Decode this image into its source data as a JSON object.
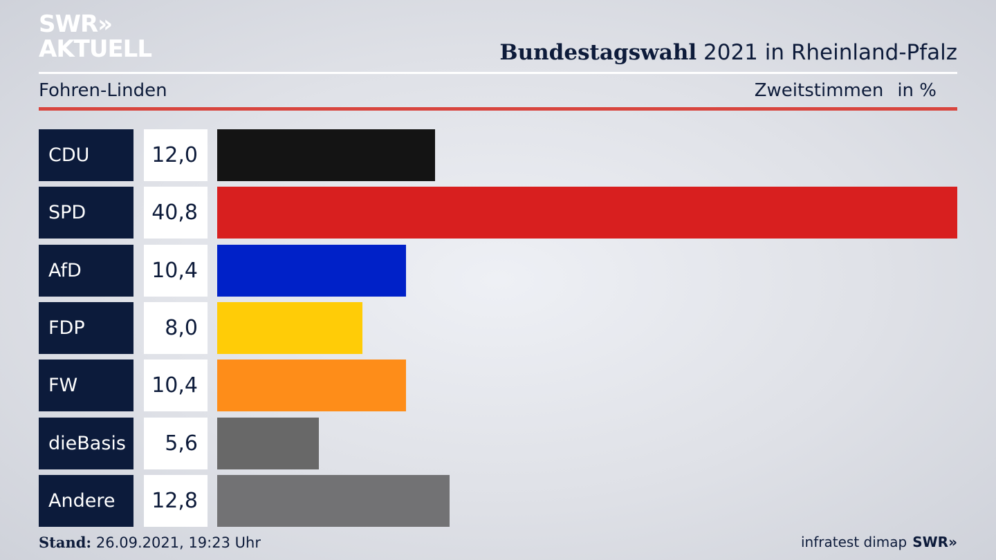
{
  "logo": {
    "line1": "SWR»",
    "line2": "AKTUELL"
  },
  "header": {
    "title_bold": "Bundestagswahl",
    "title_rest": " 2021 in Rheinland-Pfalz",
    "region": "Fohren-Linden",
    "metric": "Zweitstimmen",
    "unit": "in %"
  },
  "chart_data": {
    "type": "bar",
    "orientation": "horizontal",
    "categories": [
      "CDU",
      "SPD",
      "AfD",
      "FDP",
      "FW",
      "dieBasis",
      "Andere"
    ],
    "values": [
      12.0,
      40.8,
      10.4,
      8.0,
      10.4,
      5.6,
      12.8
    ],
    "value_labels": [
      "12,0",
      "40,8",
      "10,4",
      "8,0",
      "10,4",
      "5,6",
      "12,8"
    ],
    "colors": [
      "#141414",
      "#d81f1f",
      "#0021c8",
      "#ffcc07",
      "#fe8d19",
      "#686868",
      "#727274"
    ],
    "xlim": [
      0,
      40.8
    ],
    "grid": false
  },
  "footer": {
    "stand_label": "Stand:",
    "stand_value": " 26.09.2021, 19:23 Uhr",
    "source": "infratest dimap",
    "brand": "SWR»"
  }
}
